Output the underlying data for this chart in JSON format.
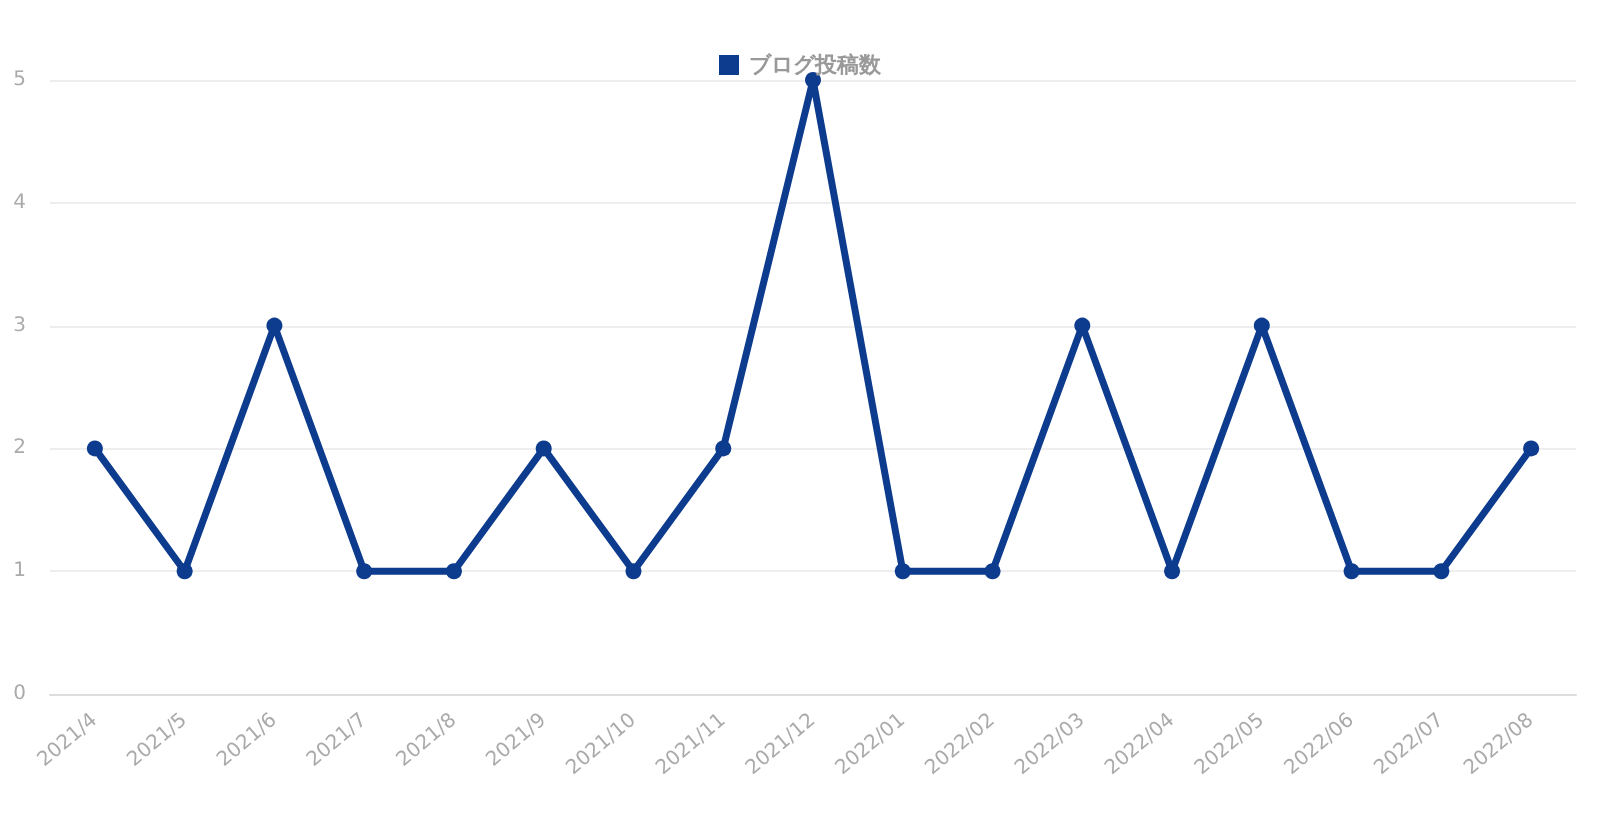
{
  "chart_data": {
    "type": "line",
    "categories": [
      "2021/4",
      "2021/5",
      "2021/6",
      "2021/7",
      "2021/8",
      "2021/9",
      "2021/10",
      "2021/11",
      "2021/12",
      "2022/01",
      "2022/02",
      "2022/03",
      "2022/04",
      "2022/05",
      "2022/06",
      "2022/07",
      "2022/08"
    ],
    "series": [
      {
        "name": "ブログ投稿数",
        "color": "#0d3b8e",
        "values": [
          2,
          1,
          3,
          1,
          1,
          2,
          1,
          2,
          5,
          1,
          1,
          3,
          1,
          3,
          1,
          1,
          2
        ]
      }
    ],
    "ylim": [
      0,
      5
    ],
    "yticks": [
      0,
      1,
      2,
      3,
      4,
      5
    ],
    "grid": "y",
    "legend": "top",
    "marker": "circle",
    "line_style": "solid"
  }
}
